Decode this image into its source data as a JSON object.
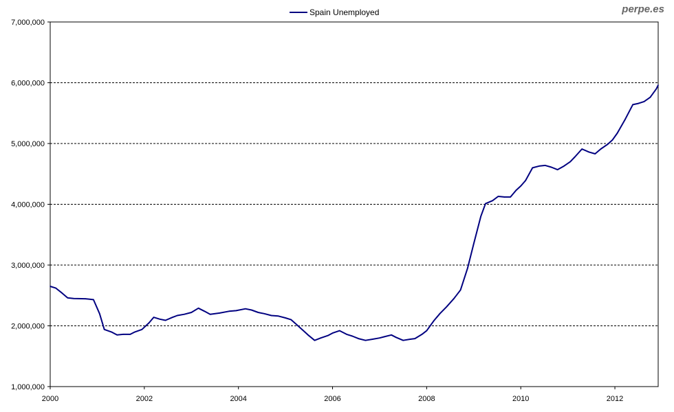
{
  "watermark": "perpe.es",
  "colors": {
    "series": "#000080",
    "grid": "#000000",
    "axis": "#000000"
  },
  "chart_data": {
    "type": "line",
    "title": "",
    "xlabel": "",
    "ylabel": "",
    "legend_position": "top-center",
    "grid": "horizontal-dashed",
    "xlim": [
      2000,
      2012.92
    ],
    "ylim": [
      1000000,
      7000000
    ],
    "x_ticks": [
      2000,
      2002,
      2004,
      2006,
      2008,
      2010,
      2012
    ],
    "x_tick_labels": [
      "2000",
      "2002",
      "2004",
      "2006",
      "2008",
      "2010",
      "2012"
    ],
    "y_ticks": [
      1000000,
      2000000,
      3000000,
      4000000,
      5000000,
      6000000,
      7000000
    ],
    "y_tick_labels": [
      "1,000,000",
      "2,000,000",
      "3,000,000",
      "4,000,000",
      "5,000,000",
      "6,000,000",
      "7,000,000"
    ],
    "series": [
      {
        "name": "Spain Unemployed",
        "color": "#000080",
        "points": [
          [
            2000.0,
            2650000
          ],
          [
            2000.12,
            2620000
          ],
          [
            2000.25,
            2540000
          ],
          [
            2000.37,
            2460000
          ],
          [
            2000.5,
            2450000
          ],
          [
            2000.75,
            2445000
          ],
          [
            2000.92,
            2430000
          ],
          [
            2001.05,
            2200000
          ],
          [
            2001.15,
            1940000
          ],
          [
            2001.3,
            1900000
          ],
          [
            2001.42,
            1850000
          ],
          [
            2001.55,
            1860000
          ],
          [
            2001.7,
            1860000
          ],
          [
            2001.8,
            1900000
          ],
          [
            2001.95,
            1940000
          ],
          [
            2002.1,
            2050000
          ],
          [
            2002.2,
            2140000
          ],
          [
            2002.33,
            2110000
          ],
          [
            2002.45,
            2090000
          ],
          [
            2002.6,
            2140000
          ],
          [
            2002.7,
            2170000
          ],
          [
            2002.85,
            2190000
          ],
          [
            2003.0,
            2220000
          ],
          [
            2003.15,
            2290000
          ],
          [
            2003.28,
            2240000
          ],
          [
            2003.4,
            2190000
          ],
          [
            2003.6,
            2210000
          ],
          [
            2003.8,
            2240000
          ],
          [
            2003.95,
            2250000
          ],
          [
            2004.15,
            2280000
          ],
          [
            2004.28,
            2260000
          ],
          [
            2004.42,
            2220000
          ],
          [
            2004.55,
            2200000
          ],
          [
            2004.7,
            2170000
          ],
          [
            2004.85,
            2160000
          ],
          [
            2005.0,
            2130000
          ],
          [
            2005.12,
            2100000
          ],
          [
            2005.22,
            2030000
          ],
          [
            2005.35,
            1940000
          ],
          [
            2005.48,
            1850000
          ],
          [
            2005.62,
            1760000
          ],
          [
            2005.75,
            1800000
          ],
          [
            2005.9,
            1840000
          ],
          [
            2006.0,
            1880000
          ],
          [
            2006.15,
            1920000
          ],
          [
            2006.3,
            1860000
          ],
          [
            2006.42,
            1830000
          ],
          [
            2006.55,
            1790000
          ],
          [
            2006.7,
            1760000
          ],
          [
            2006.85,
            1780000
          ],
          [
            2007.0,
            1800000
          ],
          [
            2007.1,
            1820000
          ],
          [
            2007.25,
            1850000
          ],
          [
            2007.35,
            1810000
          ],
          [
            2007.5,
            1760000
          ],
          [
            2007.65,
            1780000
          ],
          [
            2007.75,
            1790000
          ],
          [
            2007.9,
            1860000
          ],
          [
            2008.0,
            1920000
          ],
          [
            2008.15,
            2080000
          ],
          [
            2008.28,
            2200000
          ],
          [
            2008.42,
            2310000
          ],
          [
            2008.58,
            2450000
          ],
          [
            2008.72,
            2590000
          ],
          [
            2008.87,
            2950000
          ],
          [
            2009.0,
            3350000
          ],
          [
            2009.15,
            3800000
          ],
          [
            2009.25,
            4010000
          ],
          [
            2009.4,
            4060000
          ],
          [
            2009.52,
            4130000
          ],
          [
            2009.65,
            4120000
          ],
          [
            2009.78,
            4120000
          ],
          [
            2009.9,
            4230000
          ],
          [
            2010.0,
            4300000
          ],
          [
            2010.1,
            4390000
          ],
          [
            2010.25,
            4600000
          ],
          [
            2010.4,
            4630000
          ],
          [
            2010.52,
            4640000
          ],
          [
            2010.65,
            4610000
          ],
          [
            2010.78,
            4570000
          ],
          [
            2010.92,
            4630000
          ],
          [
            2011.05,
            4700000
          ],
          [
            2011.15,
            4780000
          ],
          [
            2011.3,
            4910000
          ],
          [
            2011.45,
            4860000
          ],
          [
            2011.58,
            4830000
          ],
          [
            2011.7,
            4910000
          ],
          [
            2011.85,
            4990000
          ],
          [
            2011.95,
            5060000
          ],
          [
            2012.05,
            5170000
          ],
          [
            2012.22,
            5400000
          ],
          [
            2012.38,
            5640000
          ],
          [
            2012.5,
            5660000
          ],
          [
            2012.62,
            5690000
          ],
          [
            2012.75,
            5760000
          ],
          [
            2012.88,
            5900000
          ],
          [
            2012.92,
            5960000
          ]
        ]
      }
    ]
  }
}
